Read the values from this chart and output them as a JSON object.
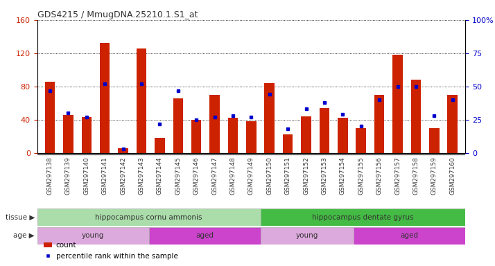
{
  "title": "GDS4215 / MmugDNA.25210.1.S1_at",
  "samples": [
    "GSM297138",
    "GSM297139",
    "GSM297140",
    "GSM297141",
    "GSM297142",
    "GSM297143",
    "GSM297144",
    "GSM297145",
    "GSM297146",
    "GSM297147",
    "GSM297148",
    "GSM297149",
    "GSM297150",
    "GSM297151",
    "GSM297152",
    "GSM297153",
    "GSM297154",
    "GSM297155",
    "GSM297156",
    "GSM297157",
    "GSM297158",
    "GSM297159",
    "GSM297160"
  ],
  "counts": [
    86,
    46,
    43,
    132,
    6,
    126,
    18,
    66,
    40,
    70,
    42,
    38,
    84,
    22,
    44,
    54,
    42,
    30,
    70,
    118,
    88,
    30,
    70
  ],
  "percentile": [
    47,
    30,
    27,
    52,
    3,
    52,
    22,
    47,
    25,
    27,
    28,
    27,
    44,
    18,
    33,
    38,
    29,
    20,
    40,
    50,
    50,
    28,
    40
  ],
  "bar_color": "#cc2200",
  "dot_color": "#0000cc",
  "tissue_groups": [
    {
      "label": "hippocampus cornu ammonis",
      "start": 0,
      "end": 12,
      "color": "#aaddaa"
    },
    {
      "label": "hippocampus dentate gyrus",
      "start": 12,
      "end": 23,
      "color": "#44bb44"
    }
  ],
  "age_groups": [
    {
      "label": "young",
      "start": 0,
      "end": 6,
      "color": "#ddaadd"
    },
    {
      "label": "aged",
      "start": 6,
      "end": 12,
      "color": "#cc44cc"
    },
    {
      "label": "young",
      "start": 12,
      "end": 17,
      "color": "#ddaadd"
    },
    {
      "label": "aged",
      "start": 17,
      "end": 23,
      "color": "#cc44cc"
    }
  ],
  "ylim_left": [
    0,
    160
  ],
  "ylim_right": [
    0,
    100
  ],
  "yticks_left": [
    0,
    40,
    80,
    120,
    160
  ],
  "yticks_right": [
    0,
    25,
    50,
    75,
    100
  ],
  "background_color": "#ffffff",
  "plot_bg_color": "#ffffff",
  "grid_color": "#000000",
  "ylabel_left_color": "#cc2200",
  "ylabel_right_color": "#0000cc"
}
